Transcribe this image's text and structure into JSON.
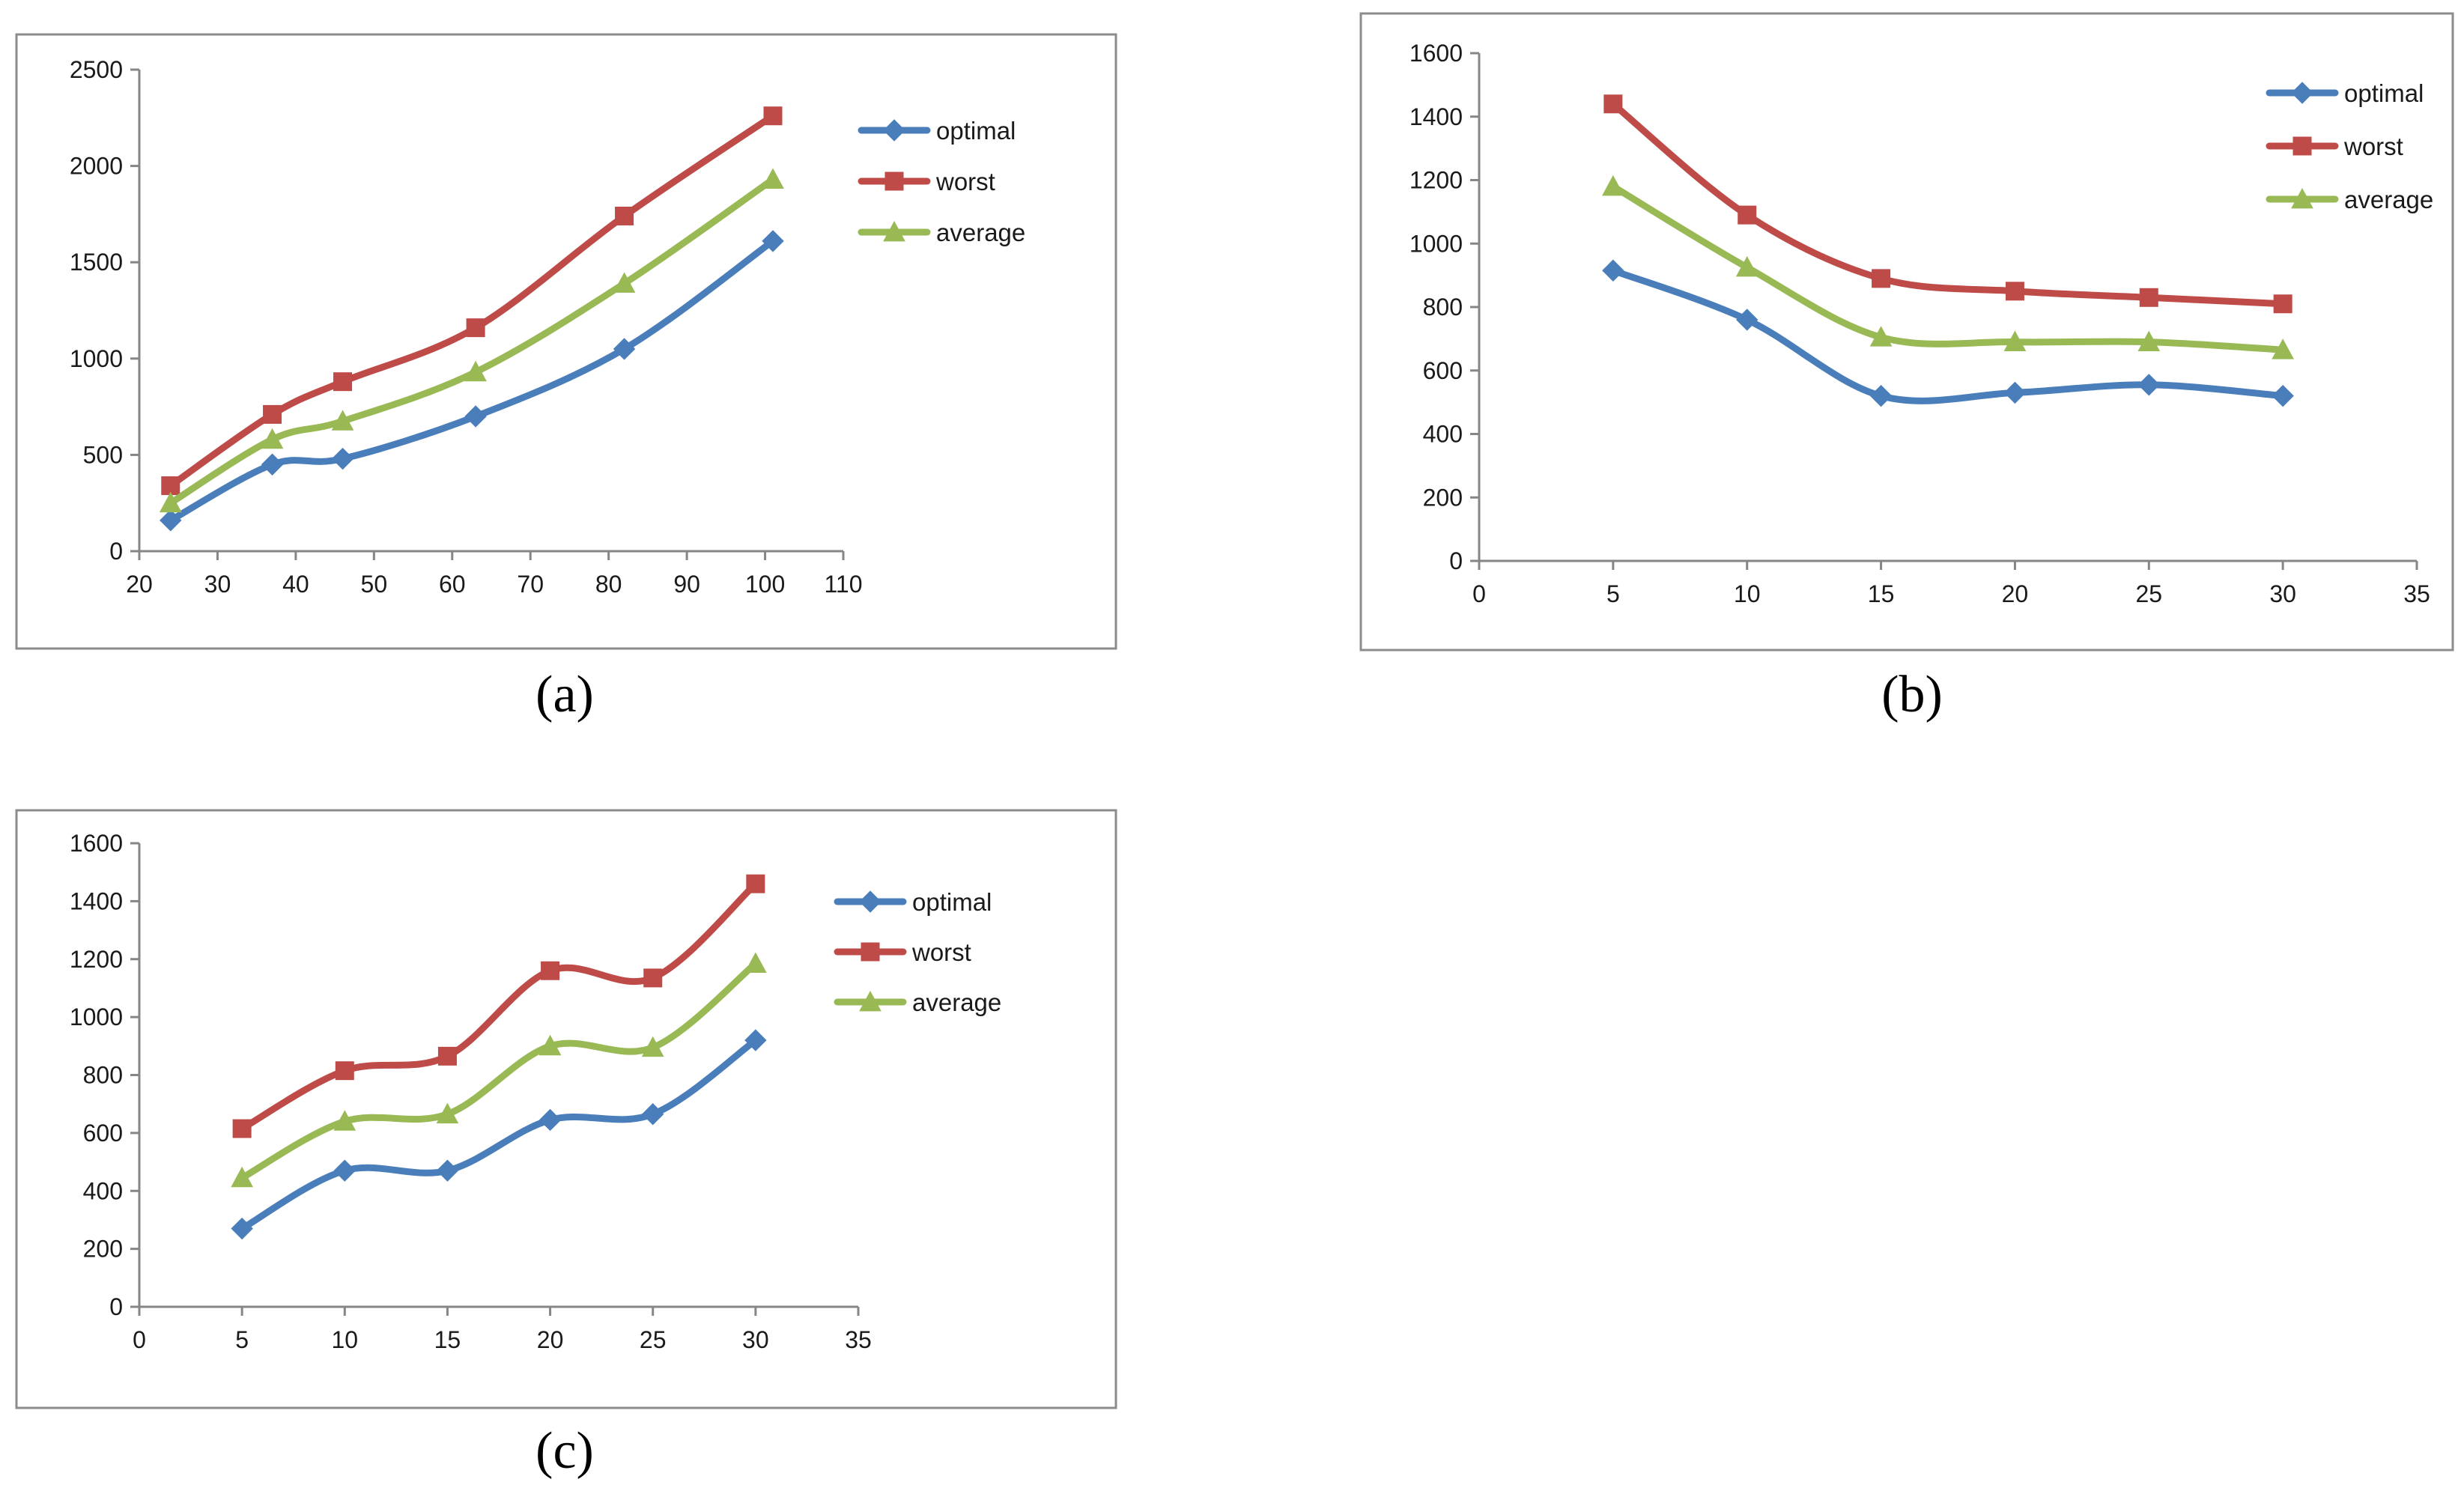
{
  "chart_data": [
    {
      "type": "line",
      "caption": "(a)",
      "xlim": [
        20,
        110
      ],
      "ylim": [
        0,
        2500
      ],
      "xticks": [
        20,
        30,
        40,
        50,
        60,
        70,
        80,
        90,
        100,
        110
      ],
      "yticks": [
        0,
        500,
        1000,
        1500,
        2000,
        2500
      ],
      "x": [
        24,
        37,
        46,
        63,
        82,
        101
      ],
      "series": [
        {
          "name": "optimal",
          "marker": "diamond",
          "color": "#4a7ebb",
          "values": [
            160,
            450,
            480,
            700,
            1050,
            1610
          ]
        },
        {
          "name": "worst",
          "marker": "square",
          "color": "#be4b48",
          "values": [
            340,
            710,
            880,
            1160,
            1740,
            2260
          ]
        },
        {
          "name": "average",
          "marker": "triangle",
          "color": "#98b954",
          "values": [
            250,
            580,
            675,
            930,
            1390,
            1930
          ]
        }
      ]
    },
    {
      "type": "line",
      "caption": "(b)",
      "xlim": [
        0,
        35
      ],
      "ylim": [
        0,
        1600
      ],
      "xticks": [
        0,
        5,
        10,
        15,
        20,
        25,
        30,
        35
      ],
      "yticks": [
        0,
        200,
        400,
        600,
        800,
        1000,
        1200,
        1400,
        1600
      ],
      "x": [
        5,
        10,
        15,
        20,
        25,
        30
      ],
      "series": [
        {
          "name": "optimal",
          "marker": "diamond",
          "color": "#4a7ebb",
          "values": [
            915,
            760,
            520,
            530,
            555,
            520
          ]
        },
        {
          "name": "worst",
          "marker": "square",
          "color": "#be4b48",
          "values": [
            1440,
            1090,
            890,
            850,
            830,
            810
          ]
        },
        {
          "name": "average",
          "marker": "triangle",
          "color": "#98b954",
          "values": [
            1180,
            925,
            705,
            690,
            690,
            665
          ]
        }
      ]
    },
    {
      "type": "line",
      "caption": "(c)",
      "xlim": [
        0,
        35
      ],
      "ylim": [
        0,
        1600
      ],
      "xticks": [
        0,
        5,
        10,
        15,
        20,
        25,
        30,
        35
      ],
      "yticks": [
        0,
        200,
        400,
        600,
        800,
        1000,
        1200,
        1400,
        1600
      ],
      "x": [
        5,
        10,
        15,
        20,
        25,
        30
      ],
      "series": [
        {
          "name": "optimal",
          "marker": "diamond",
          "color": "#4a7ebb",
          "values": [
            270,
            470,
            470,
            645,
            665,
            920
          ]
        },
        {
          "name": "worst",
          "marker": "square",
          "color": "#be4b48",
          "values": [
            615,
            815,
            865,
            1160,
            1135,
            1460
          ]
        },
        {
          "name": "average",
          "marker": "triangle",
          "color": "#98b954",
          "values": [
            445,
            640,
            665,
            900,
            895,
            1185
          ]
        }
      ]
    }
  ]
}
